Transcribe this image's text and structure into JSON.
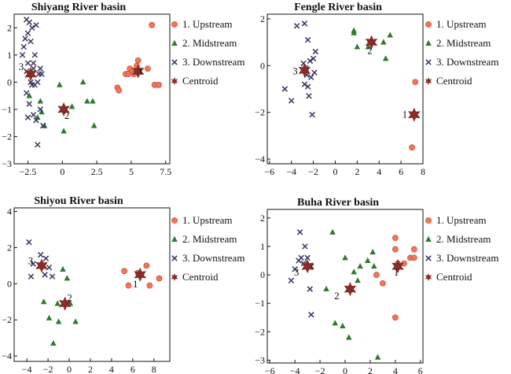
{
  "colors": {
    "upstream": "#f0765a",
    "midstream": "#2f7a2f",
    "downstream": "#3a3562",
    "centroid": "#8a2a2a",
    "edge": "#7a2a1a"
  },
  "legend": {
    "items": [
      {
        "key": "upstream",
        "label": "1. Upstream",
        "marker": "circle"
      },
      {
        "key": "midstream",
        "label": "2. Midstream",
        "marker": "triangle"
      },
      {
        "key": "downstream",
        "label": "3. Downstream",
        "marker": "x"
      },
      {
        "key": "centroid",
        "label": "Centroid",
        "marker": "star"
      }
    ]
  },
  "chart_data": [
    {
      "type": "scatter",
      "title": "Shiyang River basin",
      "xlim": [
        -3.5,
        7.8
      ],
      "ylim": [
        -3.0,
        2.5
      ],
      "xticks": [
        -2.5,
        0,
        2.5,
        5,
        7.5
      ],
      "xtick_labels": [
        "−2.5",
        "0",
        "2.5",
        "5",
        "7.5"
      ],
      "yticks": [
        -3,
        -2,
        -1,
        0,
        1,
        2
      ],
      "ytick_labels": [
        "−3",
        "−2",
        "−1",
        "0",
        "1",
        "2"
      ],
      "series": [
        {
          "key": "upstream",
          "points": [
            [
              4.0,
              -0.2
            ],
            [
              4.1,
              -0.3
            ],
            [
              4.6,
              0.3
            ],
            [
              4.8,
              0.3
            ],
            [
              4.9,
              0.5
            ],
            [
              5.1,
              0.4
            ],
            [
              5.2,
              0.3
            ],
            [
              5.4,
              0.6
            ],
            [
              5.5,
              0.8
            ],
            [
              6.2,
              0.5
            ],
            [
              6.5,
              2.1
            ],
            [
              6.7,
              -0.1
            ],
            [
              7.0,
              -0.1
            ]
          ]
        },
        {
          "key": "midstream",
          "points": [
            [
              -2.4,
              -0.5
            ],
            [
              -1.8,
              -1.3
            ],
            [
              -1.6,
              -0.7
            ],
            [
              -1.5,
              -1.1
            ],
            [
              -1.3,
              -1.6
            ],
            [
              -0.2,
              -0.1
            ],
            [
              0.1,
              -1.8
            ],
            [
              0.7,
              -0.9
            ],
            [
              1.5,
              0.0
            ],
            [
              1.8,
              -0.7
            ],
            [
              2.2,
              -0.7
            ],
            [
              2.3,
              -1.6
            ]
          ]
        },
        {
          "key": "downstream",
          "points": [
            [
              -2.9,
              1.0
            ],
            [
              -2.8,
              1.3
            ],
            [
              -2.7,
              1.6
            ],
            [
              -2.6,
              2.3
            ],
            [
              -2.5,
              1.8
            ],
            [
              -2.4,
              2.2
            ],
            [
              -2.3,
              1.5
            ],
            [
              -2.2,
              2.0
            ],
            [
              -2.1,
              0.5
            ],
            [
              -2.0,
              1.0
            ],
            [
              -1.9,
              2.1
            ],
            [
              -1.7,
              0.3
            ],
            [
              -1.6,
              0.5
            ],
            [
              -1.5,
              0.3
            ],
            [
              -2.6,
              0.4
            ],
            [
              -2.5,
              0.7
            ],
            [
              -2.3,
              0.0
            ],
            [
              -2.2,
              -0.1
            ],
            [
              -2.1,
              0.7
            ],
            [
              -2.0,
              -0.1
            ],
            [
              -1.8,
              0.0
            ],
            [
              -2.6,
              -0.4
            ],
            [
              -2.4,
              -0.8
            ],
            [
              -2.1,
              -1.2
            ],
            [
              -1.9,
              -1.4
            ],
            [
              -1.6,
              -1.0
            ],
            [
              -1.4,
              -1.6
            ],
            [
              -2.5,
              -1.3
            ],
            [
              -1.8,
              -2.3
            ]
          ]
        }
      ],
      "centroids": [
        {
          "label": "1",
          "x": 5.5,
          "y": 0.4
        },
        {
          "label": "2",
          "x": 0.1,
          "y": -1.0
        },
        {
          "label": "3",
          "x": -2.3,
          "y": 0.3
        }
      ]
    },
    {
      "type": "scatter",
      "title": "Fengle River basin",
      "xlim": [
        -6.2,
        8.0
      ],
      "ylim": [
        -4.2,
        2.2
      ],
      "xticks": [
        -6,
        -4,
        -2,
        0,
        2,
        4,
        6,
        8
      ],
      "xtick_labels": [
        "−6",
        "−4",
        "−2",
        "0",
        "2",
        "4",
        "6",
        "8"
      ],
      "yticks": [
        -4,
        -2,
        0,
        2
      ],
      "ytick_labels": [
        "−4",
        "−2",
        "0",
        "2"
      ],
      "series": [
        {
          "key": "upstream",
          "points": [
            [
              7.3,
              -0.7
            ],
            [
              7.1,
              -2.1
            ],
            [
              7.0,
              -3.5
            ]
          ]
        },
        {
          "key": "midstream",
          "points": [
            [
              1.7,
              1.4
            ],
            [
              1.7,
              1.5
            ],
            [
              2.0,
              0.8
            ],
            [
              3.0,
              0.8
            ],
            [
              4.4,
              1.0
            ],
            [
              4.6,
              0.3
            ],
            [
              5.0,
              1.3
            ]
          ]
        },
        {
          "key": "downstream",
          "points": [
            [
              -4.6,
              -1.0
            ],
            [
              -4.0,
              -1.5
            ],
            [
              -3.5,
              1.7
            ],
            [
              -2.8,
              1.8
            ],
            [
              -2.5,
              1.1
            ],
            [
              -2.3,
              0.2
            ],
            [
              -2.0,
              0.3
            ],
            [
              -1.8,
              0.6
            ],
            [
              -2.7,
              -0.1
            ],
            [
              -2.8,
              -0.8
            ],
            [
              -2.5,
              -0.9
            ],
            [
              -1.9,
              -0.3
            ],
            [
              -2.2,
              -0.5
            ],
            [
              -2.6,
              -0.4
            ],
            [
              -2.4,
              -1.3
            ],
            [
              -2.1,
              -2.1
            ],
            [
              -2.9,
              0.1
            ]
          ]
        }
      ],
      "centroids": [
        {
          "label": "1",
          "x": 7.2,
          "y": -2.1
        },
        {
          "label": "2",
          "x": 3.3,
          "y": 1.0
        },
        {
          "label": "3",
          "x": -2.8,
          "y": -0.2
        }
      ]
    },
    {
      "type": "scatter",
      "title": "Shiyou River basin",
      "xlim": [
        -5.2,
        9.5
      ],
      "ylim": [
        -4.3,
        4.2
      ],
      "xticks": [
        -4,
        -2,
        0,
        2,
        4,
        6,
        8
      ],
      "xtick_labels": [
        "−4",
        "−2",
        "0",
        "2",
        "4",
        "6",
        "8"
      ],
      "yticks": [
        -4,
        -2,
        0,
        2,
        4
      ],
      "ytick_labels": [
        "−4",
        "−2",
        "0",
        "2",
        "4"
      ],
      "series": [
        {
          "key": "upstream",
          "points": [
            [
              5.2,
              0.7
            ],
            [
              5.6,
              -0.1
            ],
            [
              6.5,
              0.6
            ],
            [
              7.3,
              1.0
            ],
            [
              7.6,
              -0.1
            ],
            [
              8.5,
              0.3
            ]
          ]
        },
        {
          "key": "midstream",
          "points": [
            [
              -2.4,
              -1.0
            ],
            [
              -1.9,
              -1.9
            ],
            [
              -1.5,
              -3.3
            ],
            [
              -1.1,
              -1.1
            ],
            [
              -1.0,
              -2.1
            ],
            [
              -0.6,
              0.8
            ],
            [
              -0.2,
              0.3
            ],
            [
              0.1,
              -1.1
            ],
            [
              0.6,
              -2.1
            ]
          ]
        },
        {
          "key": "downstream",
          "points": [
            [
              -3.8,
              2.3
            ],
            [
              -3.4,
              1.1
            ],
            [
              -3.6,
              0.4
            ],
            [
              -2.7,
              1.6
            ],
            [
              -2.2,
              1.4
            ],
            [
              -1.9,
              0.9
            ],
            [
              -2.3,
              0.5
            ],
            [
              -1.6,
              0.4
            ]
          ]
        }
      ],
      "centroids": [
        {
          "label": "1",
          "x": 6.7,
          "y": 0.5
        },
        {
          "label": "2",
          "x": -0.4,
          "y": -1.1
        },
        {
          "label": "3",
          "x": -2.6,
          "y": 1.0
        }
      ]
    },
    {
      "type": "scatter",
      "title": "Buha River basin",
      "xlim": [
        -6.2,
        6.2
      ],
      "ylim": [
        -3.1,
        2.3
      ],
      "xticks": [
        -6,
        -4,
        -2,
        0,
        2,
        4,
        6
      ],
      "xtick_labels": [
        "−6",
        "−4",
        "−2",
        "0",
        "2",
        "4",
        "6"
      ],
      "yticks": [
        -3,
        -2,
        -1,
        0,
        1,
        2
      ],
      "ytick_labels": [
        "−3",
        "−2",
        "−1",
        "0",
        "1",
        "2"
      ],
      "series": [
        {
          "key": "upstream",
          "points": [
            [
              2.5,
              0.0
            ],
            [
              3.0,
              -0.3
            ],
            [
              4.0,
              1.3
            ],
            [
              4.0,
              0.9
            ],
            [
              4.2,
              0.4
            ],
            [
              4.7,
              0.4
            ],
            [
              5.2,
              0.6
            ],
            [
              5.5,
              0.6
            ],
            [
              5.5,
              0.9
            ],
            [
              4.0,
              -1.5
            ]
          ]
        },
        {
          "key": "midstream",
          "points": [
            [
              -1.0,
              1.5
            ],
            [
              -1.5,
              -0.5
            ],
            [
              -0.8,
              -1.7
            ],
            [
              -0.2,
              -1.8
            ],
            [
              0.0,
              0.6
            ],
            [
              0.3,
              -2.2
            ],
            [
              0.4,
              -0.4
            ],
            [
              0.7,
              0.1
            ],
            [
              1.0,
              -0.2
            ],
            [
              1.2,
              0.3
            ],
            [
              1.8,
              0.5
            ],
            [
              2.3,
              0.3
            ],
            [
              2.2,
              0.8
            ],
            [
              2.6,
              -2.9
            ]
          ]
        },
        {
          "key": "downstream",
          "points": [
            [
              -4.3,
              -0.2
            ],
            [
              -4.0,
              0.2
            ],
            [
              -3.7,
              0.5
            ],
            [
              -3.6,
              1.5
            ],
            [
              -3.5,
              0.6
            ],
            [
              -3.3,
              0.4
            ],
            [
              -3.2,
              1.0
            ],
            [
              -3.0,
              0.6
            ],
            [
              -2.7,
              0.3
            ],
            [
              -2.8,
              -0.5
            ],
            [
              -2.7,
              -1.4
            ]
          ]
        }
      ],
      "centroids": [
        {
          "label": "1",
          "x": 4.2,
          "y": 0.3
        },
        {
          "label": "2",
          "x": 0.4,
          "y": -0.5
        },
        {
          "label": "3",
          "x": -3.0,
          "y": 0.3
        }
      ]
    }
  ]
}
